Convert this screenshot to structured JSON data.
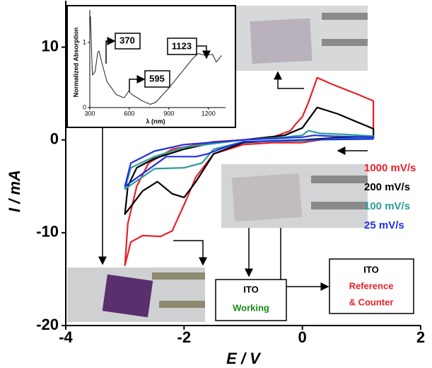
{
  "chart_data": [
    {
      "type": "line",
      "xlabel": "E / V",
      "ylabel": "I / mA",
      "xlim": [
        -4,
        2
      ],
      "ylim": [
        -20,
        15
      ],
      "xticks": [
        -4,
        -2,
        0,
        2
      ],
      "yticks": [
        -20,
        -10,
        0,
        10
      ],
      "series": [
        {
          "name": "1000 mV/s",
          "color": "#e8202a",
          "x": [
            1.2,
            0.5,
            0,
            -0.5,
            -1,
            -1.5,
            -1.8,
            -2,
            -2.2,
            -2.4,
            -2.7,
            -2.9,
            -3,
            -2.95,
            -2.8,
            -2.6,
            -2.2,
            -1.5,
            -1,
            -0.5,
            -0.2,
            -0.1,
            0,
            0.1,
            0.25,
            0.5,
            0.9,
            1.2,
            1.2
          ],
          "values": [
            0.4,
            0.2,
            -0.3,
            -0.3,
            -0.5,
            -1.5,
            -4,
            -7,
            -9.8,
            -10.4,
            -10.3,
            -11,
            -13.5,
            -9,
            -5,
            -2.5,
            -1,
            -0.2,
            0,
            0.3,
            1,
            1.8,
            2.5,
            4,
            6.7,
            6,
            5,
            4.2,
            0.4
          ]
        },
        {
          "name": "200 mV/s",
          "color": "#000000",
          "x": [
            1.2,
            0.5,
            0,
            -0.5,
            -1,
            -1.5,
            -1.8,
            -2,
            -2.2,
            -2.45,
            -2.7,
            -3,
            -2.95,
            -2.8,
            -2.5,
            -2,
            -1.5,
            -1,
            -0.3,
            0,
            0.25,
            0.6,
            1.2,
            1.2
          ],
          "values": [
            0.2,
            0.2,
            0,
            -0.1,
            -0.3,
            -1.5,
            -4.5,
            -6.2,
            -5.8,
            -4.5,
            -5.5,
            -8,
            -5,
            -3,
            -2,
            -1,
            -0.3,
            0,
            0.5,
            1.3,
            3.5,
            2.8,
            1.2,
            0.2
          ]
        },
        {
          "name": "100 mV/s",
          "color": "#2a9d9a",
          "x": [
            1.2,
            0.5,
            0,
            -1,
            -1.5,
            -1.7,
            -2,
            -2.5,
            -3,
            -2.9,
            -2.5,
            -2,
            -1,
            -0.3,
            0,
            0.1,
            0.3,
            0.7,
            1.2,
            1.2
          ],
          "values": [
            0.2,
            0.1,
            -0.1,
            -0.2,
            -1,
            -2.5,
            -3,
            -3.1,
            -5.3,
            -3,
            -1.8,
            -0.8,
            0,
            0.3,
            0.5,
            1,
            0.7,
            0.6,
            0.4,
            0.2
          ]
        },
        {
          "name": "25 mV/s",
          "color": "#2030e0",
          "x": [
            1.2,
            0,
            -1,
            -1.4,
            -1.6,
            -1.8,
            -2.3,
            -3,
            -2.9,
            -2.5,
            -2,
            -1,
            0,
            0.2,
            0.5,
            1.2,
            1.2
          ],
          "values": [
            0.1,
            0,
            -0.2,
            -1,
            -1.5,
            -1.8,
            -1.8,
            -5,
            -2.5,
            -1.2,
            -0.5,
            0,
            0.3,
            0.5,
            0.4,
            0.3,
            0.1
          ]
        }
      ],
      "annotations": [
        {
          "text": "ITO",
          "color": "#000000"
        },
        {
          "text": "Working",
          "color": "#1a8a1a"
        },
        {
          "text": "ITO",
          "color": "#000000"
        },
        {
          "text": "Reference",
          "color": "#e8202a"
        },
        {
          "text": "& Counter",
          "color": "#e8202a"
        }
      ]
    },
    {
      "type": "line",
      "xlabel": "λ (nm)",
      "ylabel": "Normalized Absorption",
      "xlim": [
        300,
        1330
      ],
      "ylim": [
        0,
        1.5
      ],
      "xticks": [
        300,
        600,
        900,
        1200
      ],
      "yticks": [
        0,
        1
      ],
      "series": [
        {
          "color": "#222222",
          "x": [
            305,
            320,
            340,
            360,
            370,
            390,
            430,
            500,
            560,
            595,
            620,
            700,
            760,
            800,
            900,
            1000,
            1080,
            1123,
            1180,
            1230,
            1260,
            1300
          ],
          "values": [
            1.4,
            0.5,
            0.55,
            0.85,
            0.87,
            0.7,
            0.4,
            0.2,
            0.15,
            0.25,
            0.2,
            0.1,
            0.05,
            0.08,
            0.3,
            0.55,
            0.75,
            0.83,
            0.8,
            0.82,
            0.7,
            0.8
          ]
        }
      ],
      "annotations": [
        "370",
        "595",
        "1123"
      ]
    }
  ]
}
